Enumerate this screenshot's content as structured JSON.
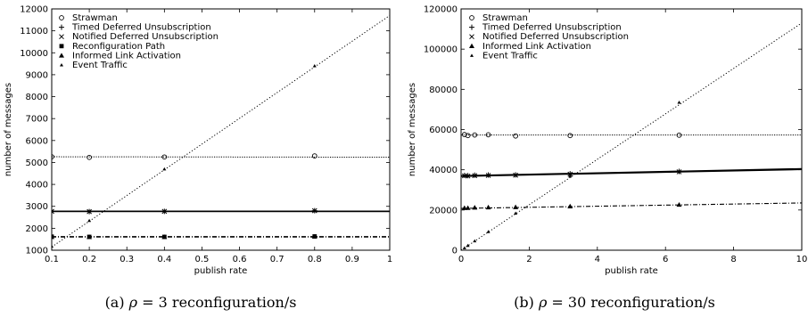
{
  "chart_data": [
    {
      "type": "line",
      "caption_prefix": "(a)",
      "caption_symbol": "ρ",
      "caption_rest": "= 3 reconfiguration/s",
      "xlabel": "publish rate",
      "ylabel": "number of messages",
      "xlim": [
        0.1,
        1
      ],
      "ylim": [
        1000,
        12000
      ],
      "xticks": [
        0.1,
        0.2,
        0.3,
        0.4,
        0.5,
        0.6,
        0.7,
        0.8,
        0.9,
        1
      ],
      "xtick_labels": [
        "0.1",
        "0.2",
        "0.3",
        "0.4",
        "0.5",
        "0.6",
        "0.7",
        "0.8",
        "0.9",
        "1"
      ],
      "yticks": [
        1000,
        2000,
        3000,
        4000,
        5000,
        6000,
        7000,
        8000,
        9000,
        10000,
        11000,
        12000
      ],
      "ytick_labels": [
        "1000",
        "2000",
        "3000",
        "4000",
        "5000",
        "6000",
        "7000",
        "8000",
        "9000",
        "10000",
        "11000",
        "12000"
      ],
      "grid": false,
      "legend_position": "top-left",
      "series": [
        {
          "name": "Strawman",
          "marker": "circle",
          "line": "dotted-dense",
          "x": [
            0.1,
            0.2,
            0.4,
            0.8
          ],
          "y": [
            5260,
            5230,
            5250,
            5300
          ],
          "fit": [
            [
              0.1,
              5260
            ],
            [
              1,
              5240
            ]
          ]
        },
        {
          "name": "Timed Deferred Unsubscription",
          "marker": "plus",
          "line": "solid",
          "x": [
            0.1,
            0.2,
            0.4,
            0.8
          ],
          "y": [
            2770,
            2760,
            2770,
            2800
          ],
          "fit": [
            [
              0.1,
              2775
            ],
            [
              1,
              2775
            ]
          ]
        },
        {
          "name": "Notified Deferred Unsubscription",
          "marker": "cross",
          "line": "solid",
          "x": [
            0.1,
            0.2,
            0.4,
            0.8
          ],
          "y": [
            2770,
            2760,
            2770,
            2800
          ],
          "fit": [
            [
              0.1,
              2775
            ],
            [
              1,
              2775
            ]
          ]
        },
        {
          "name": "Reconfiguration Path",
          "marker": "square",
          "line": "dashdot",
          "x": [
            0.1,
            0.2,
            0.4,
            0.8
          ],
          "y": [
            1620,
            1610,
            1610,
            1630
          ],
          "fit": [
            [
              0.1,
              1620
            ],
            [
              1,
              1620
            ]
          ]
        },
        {
          "name": "Informed Link Activation",
          "marker": "triangle",
          "line": "dashdot",
          "x": [
            0.1,
            0.2,
            0.4,
            0.8
          ],
          "y": [
            1600,
            1600,
            1600,
            1620
          ],
          "fit": [
            [
              0.1,
              1600
            ],
            [
              1,
              1600
            ]
          ]
        },
        {
          "name": "Event Traffic",
          "marker": "small-triangle",
          "line": "dotted",
          "x": [
            0.1,
            0.2,
            0.4,
            0.8
          ],
          "y": [
            1180,
            2350,
            4700,
            9400
          ],
          "fit": [
            [
              0.1,
              1150
            ],
            [
              1,
              11700
            ]
          ]
        }
      ]
    },
    {
      "type": "line",
      "caption_prefix": "(b)",
      "caption_symbol": "ρ",
      "caption_rest": "= 30 reconfiguration/s",
      "xlabel": "publish rate",
      "ylabel": "number of messages",
      "xlim": [
        0,
        10
      ],
      "ylim": [
        0,
        120000
      ],
      "xticks": [
        0,
        2,
        4,
        6,
        8,
        10
      ],
      "xtick_labels": [
        "0",
        "2",
        "4",
        "6",
        "8",
        "10"
      ],
      "yticks": [
        0,
        20000,
        40000,
        60000,
        80000,
        100000,
        120000
      ],
      "ytick_labels": [
        "0",
        "20000",
        "40000",
        "60000",
        "80000",
        "100000",
        "120000"
      ],
      "grid": false,
      "legend_position": "top-left",
      "series": [
        {
          "name": "Strawman",
          "marker": "circle",
          "line": "dotted-dense",
          "x": [
            0.1,
            0.2,
            0.4,
            0.8,
            1.6,
            3.2,
            6.4
          ],
          "y": [
            57500,
            57000,
            57300,
            57400,
            56800,
            57000,
            57200
          ],
          "fit": [
            [
              0,
              57300
            ],
            [
              10,
              57300
            ]
          ]
        },
        {
          "name": "Timed Deferred Unsubscription",
          "marker": "plus",
          "line": "solid",
          "x": [
            0.1,
            0.2,
            0.4,
            0.8,
            1.6,
            3.2,
            6.4
          ],
          "y": [
            37200,
            37100,
            37300,
            37400,
            37500,
            38000,
            39200
          ],
          "fit": [
            [
              0,
              37000
            ],
            [
              10,
              40500
            ]
          ]
        },
        {
          "name": "Notified Deferred Unsubscription",
          "marker": "cross",
          "line": "solid",
          "x": [
            0.1,
            0.2,
            0.4,
            0.8,
            1.6,
            3.2,
            6.4
          ],
          "y": [
            37000,
            36900,
            37100,
            37200,
            37300,
            37800,
            39000
          ],
          "fit": [
            [
              0,
              36800
            ],
            [
              10,
              40200
            ]
          ]
        },
        {
          "name": "Informed Link Activation",
          "marker": "triangle",
          "line": "dashdot",
          "x": [
            0.1,
            0.2,
            0.4,
            0.8,
            1.6,
            3.2,
            6.4
          ],
          "y": [
            21000,
            21000,
            21200,
            21300,
            21400,
            21800,
            22600
          ],
          "fit": [
            [
              0,
              20800
            ],
            [
              10,
              23500
            ]
          ]
        },
        {
          "name": "Event Traffic",
          "marker": "small-triangle",
          "line": "dotted",
          "x": [
            0.1,
            0.2,
            0.4,
            0.8,
            1.6,
            3.2,
            6.4
          ],
          "y": [
            1100,
            2300,
            4600,
            9200,
            18400,
            36800,
            73500
          ],
          "fit": [
            [
              0,
              0
            ],
            [
              10,
              113000
            ]
          ]
        }
      ]
    }
  ]
}
